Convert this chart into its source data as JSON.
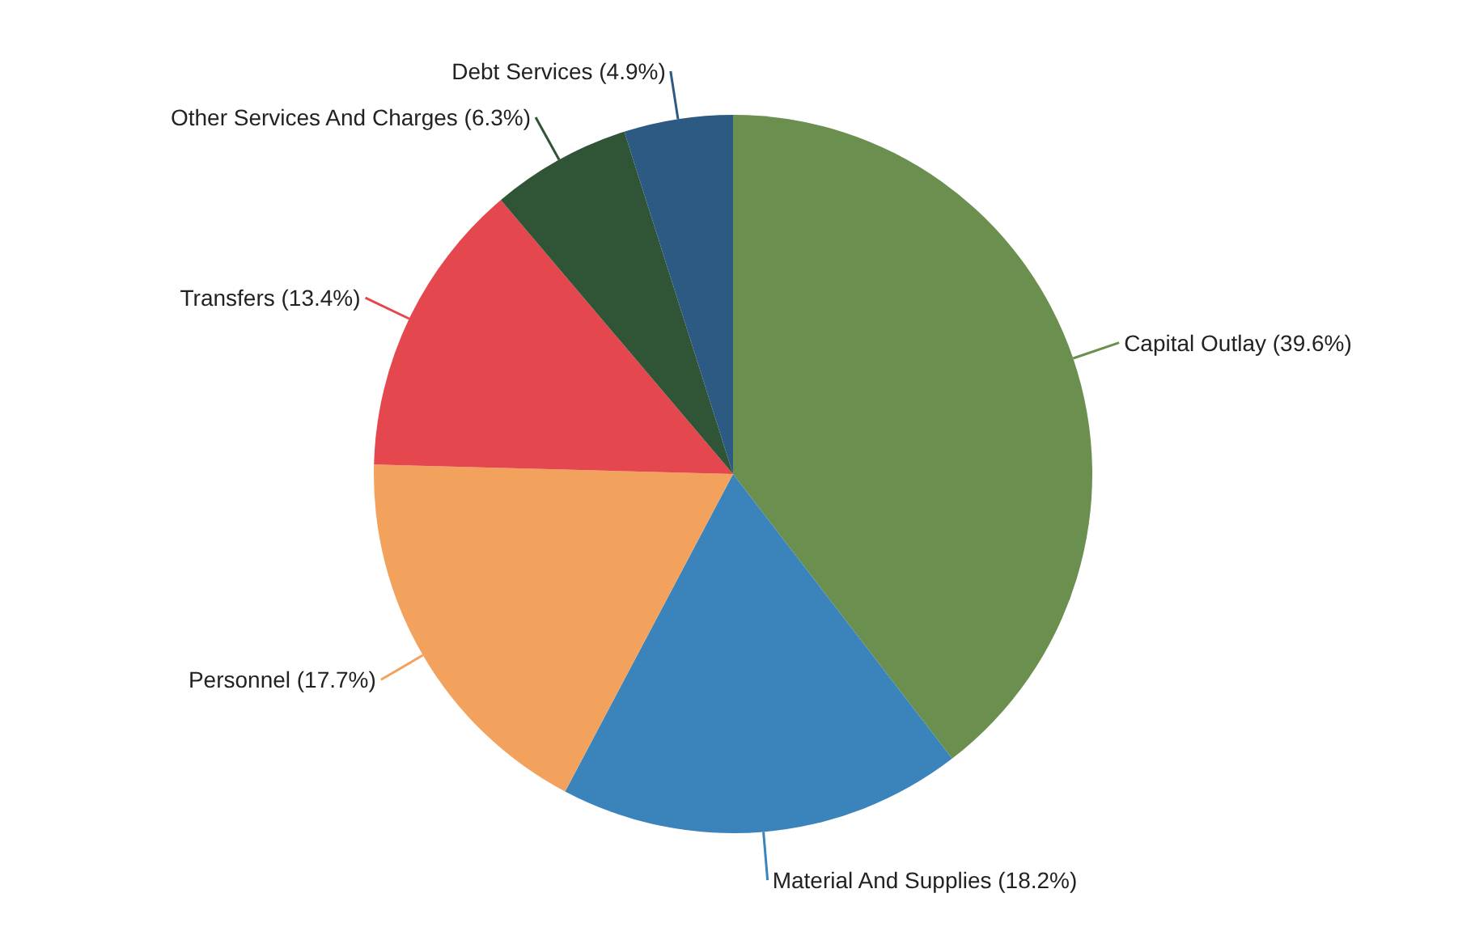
{
  "chart_data": {
    "type": "pie",
    "categories": [
      "Capital Outlay",
      "Material And Supplies",
      "Personnel",
      "Transfers",
      "Other Services And Charges",
      "Debt Services"
    ],
    "values": [
      39.6,
      18.2,
      17.7,
      13.4,
      6.3,
      4.9
    ],
    "value_labels": [
      "(39.6%)",
      "(18.2%)",
      "(17.7%)",
      "(13.4%)",
      "(6.3%)",
      "(4.9%)"
    ],
    "colors": [
      "#6b8f4e",
      "#3a84bb",
      "#f3a25e",
      "#e5474f",
      "#2f5436",
      "#2d5a82"
    ],
    "legend": false
  }
}
